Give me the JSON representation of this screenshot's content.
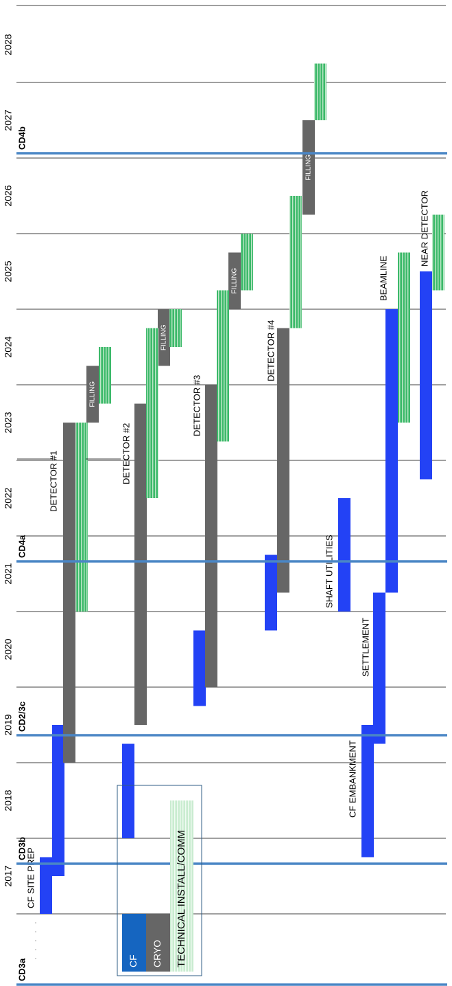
{
  "chart_data": {
    "type": "gantt",
    "orientation": "vertical-rotated",
    "years": [
      "2017",
      "2018",
      "2019",
      "2020",
      "2021",
      "2022",
      "2023",
      "2024",
      "2025",
      "2026",
      "2027",
      "2028"
    ],
    "time_range": [
      2016.0,
      2028.9
    ],
    "milestones": [
      {
        "label": "CD3a",
        "date": 2016.1
      },
      {
        "label": "CD3b",
        "date": 2017.7
      },
      {
        "label": "CD2/3c",
        "date": 2019.4
      },
      {
        "label": "CD4a",
        "date": 2021.7
      },
      {
        "label": "CD4b",
        "date": 2027.1
      }
    ],
    "tasks": [
      {
        "label": "CF SITE PREP",
        "kind": "cf",
        "start": 2017.0,
        "end": 2017.75
      },
      {
        "label": "",
        "kind": "cf",
        "start": 2017.5,
        "end": 2019.5
      },
      {
        "label": "",
        "kind": "cf",
        "start": 2018.0,
        "end": 2019.25
      },
      {
        "label": "",
        "kind": "cf",
        "start": 2019.75,
        "end": 2020.75
      },
      {
        "label": "",
        "kind": "cf",
        "start": 2020.75,
        "end": 2021.75
      },
      {
        "label": "CF EMBANKMENT",
        "kind": "cf",
        "start": 2017.75,
        "end": 2019.5
      },
      {
        "label": "SETTLEMENT",
        "kind": "cf",
        "start": 2019.25,
        "end": 2021.25
      },
      {
        "label": "SHAFT UTILITIES",
        "kind": "cf",
        "start": 2021.0,
        "end": 2022.5
      },
      {
        "label": "BEAMLINE",
        "kind": "cf",
        "start": 2021.25,
        "end": 2025.0
      },
      {
        "label": "NEAR DETECTOR",
        "kind": "cf",
        "start": 2022.75,
        "end": 2025.5
      },
      {
        "label": "DETECTOR #1",
        "kind": "cryo",
        "start": 2019.0,
        "end": 2023.5
      },
      {
        "label": "DETECTOR #2",
        "kind": "cryo",
        "start": 2019.5,
        "end": 2023.75
      },
      {
        "label": "DETECTOR #3",
        "kind": "cryo",
        "start": 2020.0,
        "end": 2024.0
      },
      {
        "label": "DETECTOR #4",
        "kind": "cryo",
        "start": 2021.25,
        "end": 2024.75
      },
      {
        "label": "FILLING",
        "kind": "cryo",
        "start": 2023.5,
        "end": 2024.25
      },
      {
        "label": "FILLING",
        "kind": "cryo",
        "start": 2024.25,
        "end": 2025.0
      },
      {
        "label": "FILLING",
        "kind": "cryo",
        "start": 2025.0,
        "end": 2025.75
      },
      {
        "label": "FILLING",
        "kind": "cryo",
        "start": 2026.25,
        "end": 2027.5
      },
      {
        "label": "",
        "kind": "tech",
        "start": 2021.0,
        "end": 2023.5
      },
      {
        "label": "",
        "kind": "tech",
        "start": 2023.75,
        "end": 2024.5
      },
      {
        "label": "",
        "kind": "tech",
        "start": 2022.5,
        "end": 2024.75
      },
      {
        "label": "",
        "kind": "tech",
        "start": 2024.5,
        "end": 2025.0
      },
      {
        "label": "",
        "kind": "tech",
        "start": 2023.25,
        "end": 2025.25
      },
      {
        "label": "",
        "kind": "tech",
        "start": 2025.25,
        "end": 2026.0
      },
      {
        "label": "",
        "kind": "tech",
        "start": 2024.75,
        "end": 2026.5
      },
      {
        "label": "",
        "kind": "tech",
        "start": 2027.5,
        "end": 2028.25
      },
      {
        "label": "",
        "kind": "tech",
        "start": 2023.5,
        "end": 2025.75
      },
      {
        "label": "",
        "kind": "tech",
        "start": 2025.25,
        "end": 2026.25
      }
    ],
    "legend": [
      {
        "label": "CF",
        "color": "#1565c0"
      },
      {
        "label": "CRYO",
        "color": "#666666"
      },
      {
        "label": "TECHNICAL INSTALL/COMM",
        "color": "#a5d6a7"
      }
    ],
    "colors": {
      "cf": "#2342f5",
      "cryo": "#666666",
      "tech": "#3cb96a",
      "milestone": "#4a86c5",
      "grid": "#000000"
    }
  }
}
